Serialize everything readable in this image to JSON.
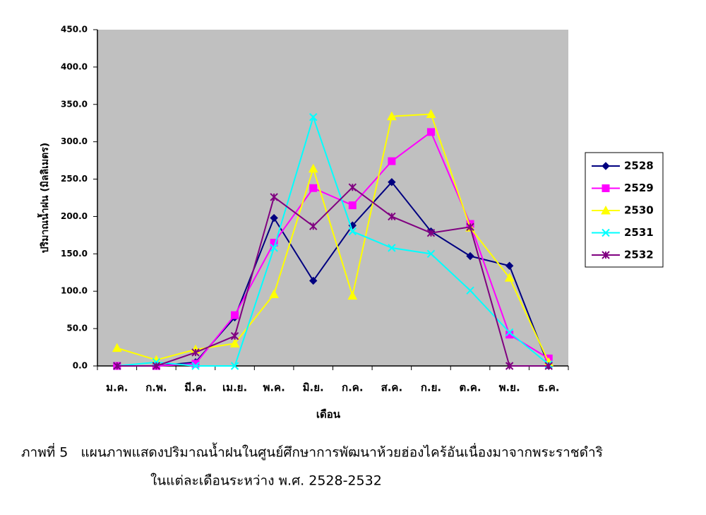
{
  "chart_data": {
    "type": "line",
    "y_label": "ปริมาณน้ำฝน (มิลลิเมตร)",
    "x_label": "เดือน",
    "caption": [
      "ภาพที่ 5   แผนภาพแสดงปริมาณน้ำฝนในศูนย์ศึกษาการพัฒนาห้วยฮ่องไคร้อันเนื่องมาจากพระราชดำริ",
      "ในแต่ละเดือนระหว่าง พ.ศ. 2528-2532"
    ],
    "categories": [
      "ม.ค.",
      "ก.พ.",
      "มี.ค.",
      "เม.ย.",
      "พ.ค.",
      "มิ.ย.",
      "ก.ค.",
      "ส.ค.",
      "ก.ย.",
      "ต.ค.",
      "พ.ย.",
      "ธ.ค."
    ],
    "ylim": [
      0,
      450
    ],
    "yticks": [
      {
        "value": 0,
        "label": "0.0"
      },
      {
        "value": 50,
        "label": "50.0"
      },
      {
        "value": 100,
        "label": "100.0"
      },
      {
        "value": 150,
        "label": "150.0"
      },
      {
        "value": 200,
        "label": "200.0"
      },
      {
        "value": 250,
        "label": "250.0"
      },
      {
        "value": 300,
        "label": "300.0"
      },
      {
        "value": 350,
        "label": "350.0"
      },
      {
        "value": 400,
        "label": "400.0"
      },
      {
        "value": 450,
        "label": "450.0"
      }
    ],
    "grid": false,
    "legend": "right",
    "series": [
      {
        "name": "2528",
        "color": "#000080",
        "marker": "diamond",
        "values": [
          0,
          0,
          5,
          65,
          198,
          114,
          188,
          246,
          180,
          147,
          134,
          0
        ]
      },
      {
        "name": "2529",
        "color": "#ff00ff",
        "marker": "square",
        "values": [
          0,
          0,
          3,
          68,
          165,
          238,
          215,
          274,
          313,
          190,
          42,
          10
        ]
      },
      {
        "name": "2530",
        "color": "#ffff00",
        "marker": "triangle",
        "values": [
          24,
          8,
          22,
          30,
          96,
          264,
          94,
          334,
          337,
          185,
          118,
          5
        ]
      },
      {
        "name": "2531",
        "color": "#00ffff",
        "marker": "x",
        "values": [
          0,
          5,
          0,
          0,
          158,
          333,
          180,
          158,
          150,
          101,
          45,
          2
        ]
      },
      {
        "name": "2532",
        "color": "#800080",
        "marker": "star",
        "values": [
          0,
          0,
          18,
          40,
          226,
          187,
          239,
          200,
          178,
          186,
          0,
          0
        ]
      }
    ]
  }
}
